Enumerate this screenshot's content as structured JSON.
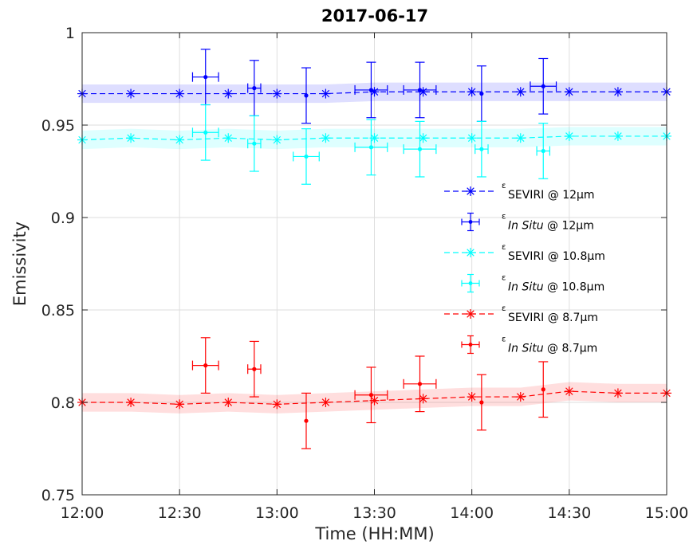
{
  "chart_data": {
    "type": "scatter",
    "title": "2017-06-17",
    "xlabel": "Time (HH:MM)",
    "ylabel": "Emissivity",
    "xlim": [
      "12:00",
      "15:00"
    ],
    "ylim": [
      0.75,
      1.0
    ],
    "x_ticks": [
      "12:00",
      "12:30",
      "13:00",
      "13:30",
      "14:00",
      "14:30",
      "15:00"
    ],
    "y_ticks": [
      "0.75",
      "0.8",
      "0.85",
      "0.9",
      "0.95",
      "1"
    ],
    "grid": true,
    "legend_position": "center-right",
    "series": [
      {
        "label": "SEVIRI @ 12μm",
        "kind": "seviri",
        "color": "#0000FF",
        "x": [
          "12:00",
          "12:15",
          "12:30",
          "12:45",
          "13:00",
          "13:15",
          "13:30",
          "13:45",
          "14:00",
          "14:15",
          "14:30",
          "14:45",
          "15:00"
        ],
        "y": [
          0.967,
          0.967,
          0.967,
          0.967,
          0.967,
          0.967,
          0.968,
          0.968,
          0.968,
          0.968,
          0.968,
          0.968,
          0.968
        ],
        "band_halfwidth": 0.005
      },
      {
        "label": "In Situ @ 12μm",
        "kind": "insitu",
        "color": "#0000FF",
        "x": [
          "12:38",
          "12:53",
          "13:09",
          "13:29",
          "13:44",
          "14:03",
          "14:22"
        ],
        "y": [
          0.976,
          0.97,
          0.966,
          0.969,
          0.969,
          0.967,
          0.971
        ],
        "y_err": [
          0.015,
          0.015,
          0.015,
          0.015,
          0.015,
          0.015,
          0.015
        ],
        "x_err_min": [
          4,
          2,
          0,
          5,
          5,
          0,
          4
        ]
      },
      {
        "label": "SEVIRI @ 10.8μm",
        "kind": "seviri",
        "color": "#00FFFF",
        "x": [
          "12:00",
          "12:15",
          "12:30",
          "12:45",
          "13:00",
          "13:15",
          "13:30",
          "13:45",
          "14:00",
          "14:15",
          "14:30",
          "14:45",
          "15:00"
        ],
        "y": [
          0.942,
          0.943,
          0.942,
          0.943,
          0.942,
          0.943,
          0.943,
          0.943,
          0.943,
          0.943,
          0.944,
          0.944,
          0.944
        ],
        "band_halfwidth": 0.005
      },
      {
        "label": "In Situ @ 10.8μm",
        "kind": "insitu",
        "color": "#00FFFF",
        "x": [
          "12:38",
          "12:53",
          "13:09",
          "13:29",
          "13:44",
          "14:03",
          "14:22"
        ],
        "y": [
          0.946,
          0.94,
          0.933,
          0.938,
          0.937,
          0.937,
          0.936
        ],
        "y_err": [
          0.015,
          0.015,
          0.015,
          0.015,
          0.015,
          0.015,
          0.015
        ],
        "x_err_min": [
          4,
          2,
          4,
          5,
          5,
          2,
          2
        ]
      },
      {
        "label": "SEVIRI @ 8.7μm",
        "kind": "seviri",
        "color": "#FF0000",
        "x": [
          "12:00",
          "12:15",
          "12:30",
          "12:45",
          "13:00",
          "13:15",
          "13:30",
          "13:45",
          "14:00",
          "14:15",
          "14:30",
          "14:45",
          "15:00"
        ],
        "y": [
          0.8,
          0.8,
          0.799,
          0.8,
          0.799,
          0.8,
          0.801,
          0.802,
          0.803,
          0.803,
          0.806,
          0.805,
          0.805
        ],
        "band_halfwidth": 0.005
      },
      {
        "label": "In Situ @ 8.7μm",
        "kind": "insitu",
        "color": "#FF0000",
        "x": [
          "12:38",
          "12:53",
          "13:09",
          "13:29",
          "13:44",
          "14:03",
          "14:22"
        ],
        "y": [
          0.82,
          0.818,
          0.79,
          0.804,
          0.81,
          0.8,
          0.807
        ],
        "y_err": [
          0.015,
          0.015,
          0.015,
          0.015,
          0.015,
          0.015,
          0.015
        ],
        "x_err_min": [
          4,
          2,
          0,
          5,
          5,
          0,
          0
        ]
      }
    ],
    "legend": [
      {
        "sym": "ε",
        "main": "SEVIRI",
        "suffix": " @ 12μm",
        "italic": false,
        "series": 0
      },
      {
        "sym": "ε",
        "main": "In Situ",
        "suffix": " @ 12μm",
        "italic": true,
        "series": 1
      },
      {
        "sym": "ε",
        "main": "SEVIRI",
        "suffix": " @ 10.8μm",
        "italic": false,
        "series": 2
      },
      {
        "sym": "ε",
        "main": "In Situ",
        "suffix": " @ 10.8μm",
        "italic": true,
        "series": 3
      },
      {
        "sym": "ε",
        "main": "SEVIRI",
        "suffix": " @ 8.7μm",
        "italic": false,
        "series": 4
      },
      {
        "sym": "ε",
        "main": "In Situ",
        "suffix": " @ 8.7μm",
        "italic": true,
        "series": 5
      }
    ]
  }
}
